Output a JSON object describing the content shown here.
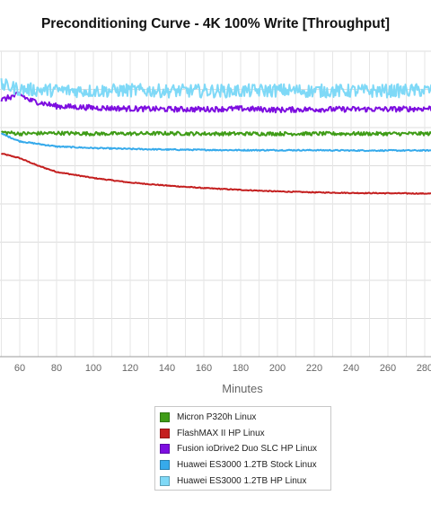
{
  "chart_data": {
    "type": "line",
    "title": "Preconditioning Curve - 4K 100% Write [Throughput]",
    "xlabel": "Minutes",
    "ylabel": "",
    "x_ticks": [
      60,
      80,
      100,
      120,
      140,
      160,
      180,
      200,
      220,
      240,
      260,
      280
    ],
    "xlim": [
      50,
      288
    ],
    "ylim_px_ref": "no y-axis labels visible",
    "grid": true,
    "legend_position": "bottom",
    "series": [
      {
        "name": "Micron P320h Linux",
        "color": "#3f9c17",
        "x": [
          50,
          60,
          80,
          100,
          120,
          140,
          160,
          180,
          200,
          220,
          240,
          260,
          280,
          288
        ],
        "values": [
          73.5,
          73.0,
          73.2,
          73.0,
          73.0,
          73.1,
          73.0,
          73.0,
          73.0,
          73.0,
          73.0,
          73.0,
          73.0,
          73.0
        ],
        "noise": 0.6
      },
      {
        "name": "FlashMAX II HP Linux",
        "color": "#c41f1f",
        "x": [
          50,
          60,
          70,
          80,
          100,
          120,
          140,
          160,
          180,
          200,
          220,
          240,
          260,
          280,
          288
        ],
        "values": [
          66.5,
          65.0,
          62.5,
          60.5,
          58.5,
          57.0,
          56.0,
          55.2,
          54.6,
          54.1,
          53.8,
          53.6,
          53.5,
          53.4,
          53.4
        ],
        "noise": 0.15
      },
      {
        "name": "Fusion ioDrive2 Duo SLC HP Linux",
        "color": "#7d0ee0",
        "x": [
          50,
          60,
          65,
          80,
          100,
          120,
          140,
          160,
          180,
          200,
          220,
          240,
          260,
          280,
          288
        ],
        "values": [
          84.0,
          86.0,
          84.0,
          82.0,
          81.5,
          81.2,
          81.0,
          81.0,
          81.2,
          80.8,
          81.0,
          81.0,
          81.0,
          81.2,
          81.5
        ],
        "noise": 0.9
      },
      {
        "name": "Huawei ES3000 1.2TB Stock Linux",
        "color": "#36aaeb",
        "x": [
          50,
          60,
          80,
          100,
          120,
          140,
          160,
          180,
          200,
          220,
          240,
          260,
          280,
          288
        ],
        "values": [
          73.0,
          70.5,
          68.8,
          68.3,
          68.0,
          67.8,
          67.7,
          67.6,
          67.6,
          67.6,
          67.5,
          67.5,
          67.5,
          67.5
        ],
        "noise": 0.2
      },
      {
        "name": "Huawei ES3000 1.2TB HP Linux",
        "color": "#7fd9f7",
        "x": [
          50,
          60,
          80,
          100,
          120,
          140,
          160,
          180,
          200,
          220,
          240,
          260,
          280,
          288
        ],
        "values": [
          89.0,
          87.5,
          87.2,
          87.0,
          87.2,
          87.0,
          87.0,
          87.0,
          87.2,
          87.0,
          87.0,
          87.0,
          87.2,
          87.0
        ],
        "noise": 2.2
      }
    ]
  }
}
